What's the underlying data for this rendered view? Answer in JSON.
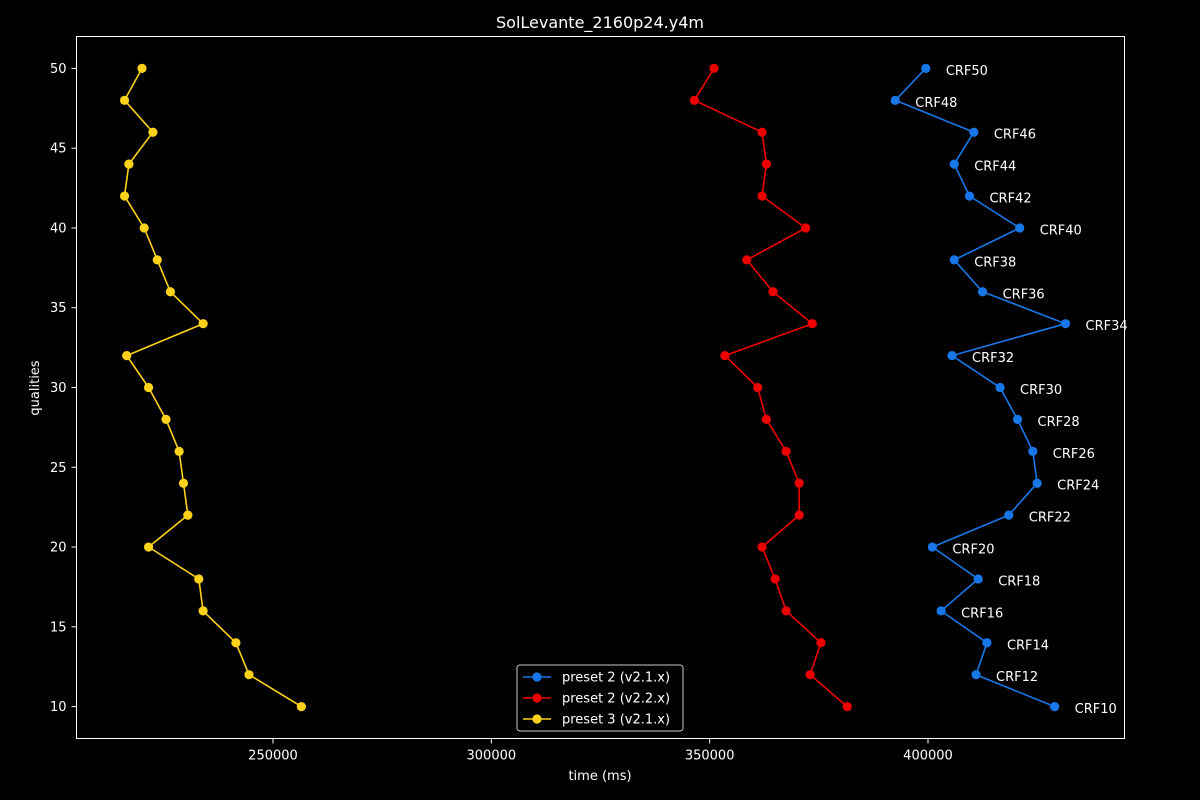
{
  "chart_data": {
    "type": "line",
    "title": "SolLevante_2160p24.y4m",
    "xlabel": "time (ms)",
    "ylabel": "qualities",
    "xlim": [
      205000,
      445000
    ],
    "ylim": [
      8,
      52
    ],
    "xticks": [
      250000,
      300000,
      350000,
      400000
    ],
    "yticks": [
      10,
      15,
      20,
      25,
      30,
      35,
      40,
      45,
      50
    ],
    "grid": false,
    "legend": "bottom-center",
    "series": [
      {
        "name": "preset 2 (v2.1.x)",
        "color": "#1877e8",
        "points": [
          {
            "x": 399500,
            "y": 50
          },
          {
            "x": 392500,
            "y": 48
          },
          {
            "x": 410500,
            "y": 46
          },
          {
            "x": 406000,
            "y": 44
          },
          {
            "x": 409500,
            "y": 42
          },
          {
            "x": 421000,
            "y": 40
          },
          {
            "x": 406000,
            "y": 38
          },
          {
            "x": 412500,
            "y": 36
          },
          {
            "x": 431500,
            "y": 34
          },
          {
            "x": 405500,
            "y": 32
          },
          {
            "x": 416500,
            "y": 30
          },
          {
            "x": 420500,
            "y": 28
          },
          {
            "x": 424000,
            "y": 26
          },
          {
            "x": 425000,
            "y": 24
          },
          {
            "x": 418500,
            "y": 22
          },
          {
            "x": 401000,
            "y": 20
          },
          {
            "x": 411500,
            "y": 18
          },
          {
            "x": 403000,
            "y": 16
          },
          {
            "x": 413500,
            "y": 14
          },
          {
            "x": 411000,
            "y": 12
          },
          {
            "x": 429000,
            "y": 10
          }
        ],
        "annotations": [
          "CRF50",
          "CRF48",
          "CRF46",
          "CRF44",
          "CRF42",
          "CRF40",
          "CRF38",
          "CRF36",
          "CRF34",
          "CRF32",
          "CRF30",
          "CRF28",
          "CRF26",
          "CRF24",
          "CRF22",
          "CRF20",
          "CRF18",
          "CRF16",
          "CRF14",
          "CRF12",
          "CRF10"
        ]
      },
      {
        "name": "preset 2 (v2.2.x)",
        "color": "#ee0000",
        "points": [
          {
            "x": 351000,
            "y": 50
          },
          {
            "x": 346500,
            "y": 48
          },
          {
            "x": 362000,
            "y": 46
          },
          {
            "x": 363000,
            "y": 44
          },
          {
            "x": 362000,
            "y": 42
          },
          {
            "x": 372000,
            "y": 40
          },
          {
            "x": 358500,
            "y": 38
          },
          {
            "x": 364500,
            "y": 36
          },
          {
            "x": 373500,
            "y": 34
          },
          {
            "x": 353500,
            "y": 32
          },
          {
            "x": 361000,
            "y": 30
          },
          {
            "x": 363000,
            "y": 28
          },
          {
            "x": 367500,
            "y": 26
          },
          {
            "x": 370500,
            "y": 24
          },
          {
            "x": 370500,
            "y": 22
          },
          {
            "x": 362000,
            "y": 20
          },
          {
            "x": 365000,
            "y": 18
          },
          {
            "x": 367500,
            "y": 16
          },
          {
            "x": 375500,
            "y": 14
          },
          {
            "x": 373000,
            "y": 12
          },
          {
            "x": 381500,
            "y": 10
          }
        ]
      },
      {
        "name": "preset 3 (v2.1.x)",
        "color": "#ffd21a",
        "points": [
          {
            "x": 220000,
            "y": 50
          },
          {
            "x": 216000,
            "y": 48
          },
          {
            "x": 222500,
            "y": 46
          },
          {
            "x": 217000,
            "y": 44
          },
          {
            "x": 216000,
            "y": 42
          },
          {
            "x": 220500,
            "y": 40
          },
          {
            "x": 223500,
            "y": 38
          },
          {
            "x": 226500,
            "y": 36
          },
          {
            "x": 234000,
            "y": 34
          },
          {
            "x": 216500,
            "y": 32
          },
          {
            "x": 221500,
            "y": 30
          },
          {
            "x": 225500,
            "y": 28
          },
          {
            "x": 228500,
            "y": 26
          },
          {
            "x": 229500,
            "y": 24
          },
          {
            "x": 230500,
            "y": 22
          },
          {
            "x": 221500,
            "y": 20
          },
          {
            "x": 233000,
            "y": 18
          },
          {
            "x": 234000,
            "y": 16
          },
          {
            "x": 241500,
            "y": 14
          },
          {
            "x": 244500,
            "y": 12
          },
          {
            "x": 256500,
            "y": 10
          }
        ]
      }
    ]
  }
}
